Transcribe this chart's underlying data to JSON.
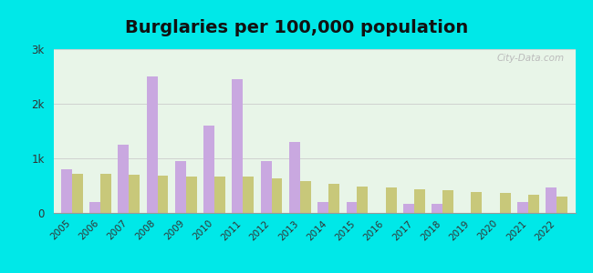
{
  "title": "Burglaries per 100,000 population",
  "years": [
    2005,
    2006,
    2007,
    2008,
    2009,
    2010,
    2011,
    2012,
    2013,
    2014,
    2015,
    2016,
    2017,
    2018,
    2019,
    2020,
    2021,
    2022
  ],
  "pittman": [
    800,
    200,
    1250,
    2500,
    950,
    1600,
    2450,
    950,
    1300,
    200,
    200,
    0,
    175,
    175,
    0,
    0,
    200,
    475
  ],
  "us_avg": [
    720,
    720,
    700,
    680,
    660,
    660,
    660,
    640,
    580,
    530,
    490,
    460,
    440,
    410,
    390,
    360,
    340,
    300
  ],
  "pittman_color": "#c9a8e0",
  "us_avg_color": "#c8c87a",
  "outer_bg": "#00e8e8",
  "plot_bg": "#e8f5e8",
  "ylim": [
    0,
    3000
  ],
  "yticks": [
    0,
    1000,
    2000,
    3000
  ],
  "ytick_labels": [
    "0",
    "1k",
    "2k",
    "3k"
  ],
  "title_fontsize": 14,
  "bar_width": 0.38,
  "watermark": "City-Data.com"
}
